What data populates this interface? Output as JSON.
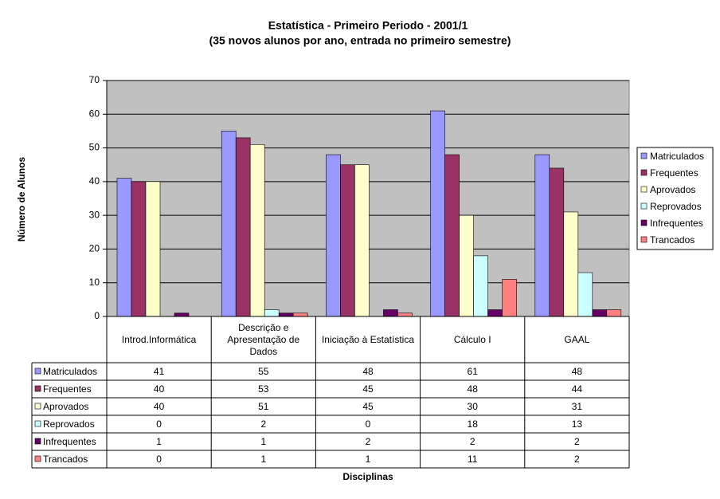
{
  "chart_data": {
    "type": "bar",
    "title": "Estatística - Primeiro Periodo - 2001/1",
    "subtitle": "(35 novos alunos por ano, entrada no primeiro semestre)",
    "xlabel": "Disciplinas",
    "ylabel": "Número de Alunos",
    "categories": [
      "Introd.Informática",
      "Descrição e Apresentação de Dados",
      "Iniciação à Estatística",
      "Cálculo I",
      "GAAL"
    ],
    "series": [
      {
        "name": "Matriculados",
        "color": "#9999ff",
        "values": [
          41,
          55,
          48,
          61,
          48
        ]
      },
      {
        "name": "Frequentes",
        "color": "#993366",
        "values": [
          40,
          53,
          45,
          48,
          44
        ]
      },
      {
        "name": "Aprovados",
        "color": "#ffffcc",
        "values": [
          40,
          51,
          45,
          30,
          31
        ]
      },
      {
        "name": "Reprovados",
        "color": "#ccffff",
        "values": [
          0,
          2,
          0,
          18,
          13
        ]
      },
      {
        "name": "Infrequentes",
        "color": "#660066",
        "values": [
          1,
          1,
          2,
          2,
          2
        ]
      },
      {
        "name": "Trancados",
        "color": "#ff8080",
        "values": [
          0,
          1,
          1,
          11,
          2
        ]
      }
    ],
    "ylim": [
      0,
      70
    ],
    "yticks": [
      0,
      10,
      20,
      30,
      40,
      50,
      60,
      70
    ],
    "grid": true,
    "legend": "right"
  }
}
